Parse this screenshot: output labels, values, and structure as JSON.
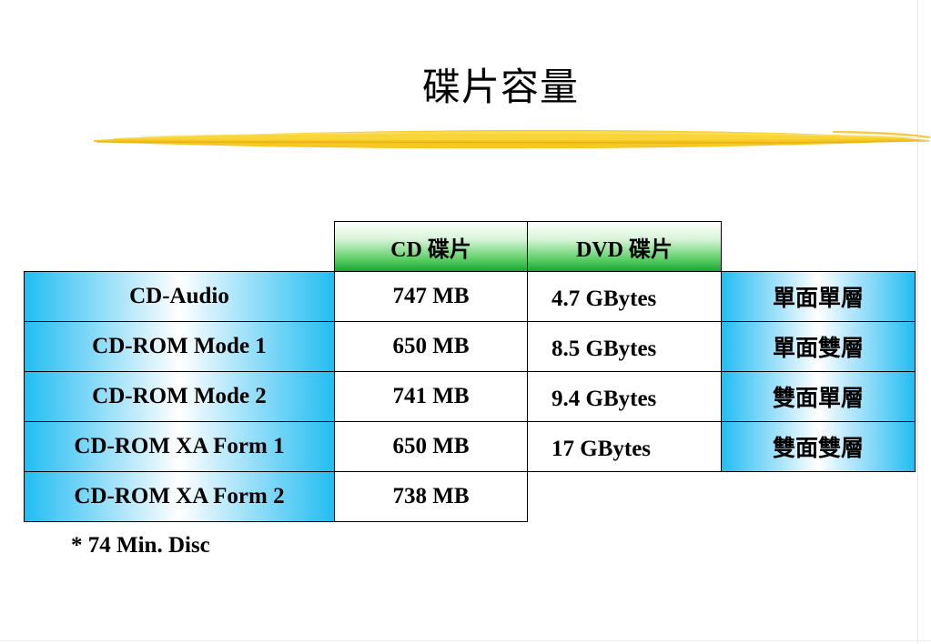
{
  "slide": {
    "title": "碟片容量",
    "note": "* 74 Min. Disc"
  },
  "table": {
    "headers": [
      "CD 碟片",
      "DVD 碟片"
    ],
    "cd_rows": [
      {
        "format": "CD-Audio",
        "capacity": "747 MB"
      },
      {
        "format": "CD-ROM Mode 1",
        "capacity": "650 MB"
      },
      {
        "format": "CD-ROM Mode 2",
        "capacity": "741 MB"
      },
      {
        "format": "CD-ROM XA Form 1",
        "capacity": "650 MB"
      },
      {
        "format": "CD-ROM XA Form 2",
        "capacity": "738 MB"
      }
    ],
    "dvd_rows": [
      {
        "capacity": "4.7 GBytes",
        "layers": "單面單層"
      },
      {
        "capacity": "8.5 GBytes",
        "layers": "單面雙層"
      },
      {
        "capacity": "9.4 GBytes",
        "layers": "雙面單層"
      },
      {
        "capacity": "17 GBytes",
        "layers": "雙面雙層"
      }
    ]
  },
  "colors": {
    "header_green": "#1aa532",
    "row_blue": "#23bdf2",
    "swoosh_yellow": "#f5c518"
  }
}
